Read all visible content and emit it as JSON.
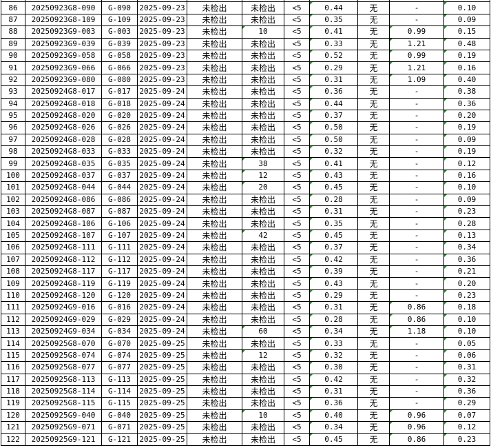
{
  "table": {
    "columns_note": "",
    "rows": [
      [
        "86",
        "20250923G8-090",
        "G-090",
        "2025-09-23",
        "未检出",
        "未检出",
        "<5",
        "0.44",
        "无",
        "-",
        "0.10"
      ],
      [
        "87",
        "20250923G8-109",
        "G-109",
        "2025-09-23",
        "未检出",
        "未检出",
        "<5",
        "0.35",
        "无",
        "-",
        "0.09"
      ],
      [
        "88",
        "20250923G9-003",
        "G-003",
        "2025-09-23",
        "未检出",
        "10",
        "<5",
        "0.41",
        "无",
        "0.99",
        "0.15"
      ],
      [
        "89",
        "20250923G9-039",
        "G-039",
        "2025-09-23",
        "未检出",
        "未检出",
        "<5",
        "0.33",
        "无",
        "1.21",
        "0.48"
      ],
      [
        "90",
        "20250923G9-058",
        "G-058",
        "2025-09-23",
        "未检出",
        "未检出",
        "<5",
        "0.52",
        "无",
        "0.99",
        "0.19"
      ],
      [
        "91",
        "20250923G9-066",
        "G-066",
        "2025-09-23",
        "未检出",
        "未检出",
        "<5",
        "0.29",
        "无",
        "1.21",
        "0.16"
      ],
      [
        "92",
        "20250923G9-080",
        "G-080",
        "2025-09-23",
        "未检出",
        "未检出",
        "<5",
        "0.31",
        "无",
        "1.09",
        "0.40"
      ],
      [
        "93",
        "20250924G8-017",
        "G-017",
        "2025-09-24",
        "未检出",
        "未检出",
        "<5",
        "0.36",
        "无",
        "-",
        "0.38"
      ],
      [
        "94",
        "20250924G8-018",
        "G-018",
        "2025-09-24",
        "未检出",
        "未检出",
        "<5",
        "0.44",
        "无",
        "-",
        "0.36"
      ],
      [
        "95",
        "20250924G8-020",
        "G-020",
        "2025-09-24",
        "未检出",
        "未检出",
        "<5",
        "0.37",
        "无",
        "-",
        "0.20"
      ],
      [
        "96",
        "20250924G8-026",
        "G-026",
        "2025-09-24",
        "未检出",
        "未检出",
        "<5",
        "0.50",
        "无",
        "-",
        "0.19"
      ],
      [
        "97",
        "20250924G8-028",
        "G-028",
        "2025-09-24",
        "未检出",
        "未检出",
        "<5",
        "0.50",
        "无",
        "-",
        "0.09"
      ],
      [
        "98",
        "20250924G8-033",
        "G-033",
        "2025-09-24",
        "未检出",
        "未检出",
        "<5",
        "0.32",
        "无",
        "-",
        "0.19"
      ],
      [
        "99",
        "20250924G8-035",
        "G-035",
        "2025-09-24",
        "未检出",
        "38",
        "<5",
        "0.41",
        "无",
        "-",
        "0.12"
      ],
      [
        "100",
        "20250924G8-037",
        "G-037",
        "2025-09-24",
        "未检出",
        "12",
        "<5",
        "0.43",
        "无",
        "-",
        "0.16"
      ],
      [
        "101",
        "20250924G8-044",
        "G-044",
        "2025-09-24",
        "未检出",
        "20",
        "<5",
        "0.45",
        "无",
        "-",
        "0.10"
      ],
      [
        "102",
        "20250924G8-086",
        "G-086",
        "2025-09-24",
        "未检出",
        "未检出",
        "<5",
        "0.28",
        "无",
        "-",
        "0.09"
      ],
      [
        "103",
        "20250924G8-087",
        "G-087",
        "2025-09-24",
        "未检出",
        "未检出",
        "<5",
        "0.31",
        "无",
        "-",
        "0.23"
      ],
      [
        "104",
        "20250924G8-106",
        "G-106",
        "2025-09-24",
        "未检出",
        "未检出",
        "<5",
        "0.35",
        "无",
        "-",
        "0.28"
      ],
      [
        "105",
        "20250924G8-107",
        "G-107",
        "2025-09-24",
        "未检出",
        "42",
        "<5",
        "0.45",
        "无",
        "-",
        "0.13"
      ],
      [
        "106",
        "20250924G8-111",
        "G-111",
        "2025-09-24",
        "未检出",
        "未检出",
        "<5",
        "0.37",
        "无",
        "-",
        "0.34"
      ],
      [
        "107",
        "20250924G8-112",
        "G-112",
        "2025-09-24",
        "未检出",
        "未检出",
        "<5",
        "0.42",
        "无",
        "-",
        "0.36"
      ],
      [
        "108",
        "20250924G8-117",
        "G-117",
        "2025-09-24",
        "未检出",
        "未检出",
        "<5",
        "0.39",
        "无",
        "-",
        "0.21"
      ],
      [
        "109",
        "20250924G8-119",
        "G-119",
        "2025-09-24",
        "未检出",
        "未检出",
        "<5",
        "0.43",
        "无",
        "-",
        "0.20"
      ],
      [
        "110",
        "20250924G8-120",
        "G-120",
        "2025-09-24",
        "未检出",
        "未检出",
        "<5",
        "0.29",
        "无",
        "-",
        "0.23"
      ],
      [
        "111",
        "20250924G9-016",
        "G-016",
        "2025-09-24",
        "未检出",
        "未检出",
        "<5",
        "0.31",
        "无",
        "0.86",
        "0.18"
      ],
      [
        "112",
        "20250924G9-029",
        "G-029",
        "2025-09-24",
        "未检出",
        "未检出",
        "<5",
        "0.28",
        "无",
        "0.86",
        "0.10"
      ],
      [
        "113",
        "20250924G9-034",
        "G-034",
        "2025-09-24",
        "未检出",
        "60",
        "<5",
        "0.34",
        "无",
        "1.18",
        "0.10"
      ],
      [
        "114",
        "20250925G8-070",
        "G-070",
        "2025-09-25",
        "未检出",
        "未检出",
        "<5",
        "0.33",
        "无",
        "-",
        "0.05"
      ],
      [
        "115",
        "20250925G8-074",
        "G-074",
        "2025-09-25",
        "未检出",
        "12",
        "<5",
        "0.32",
        "无",
        "-",
        "0.06"
      ],
      [
        "116",
        "20250925G8-077",
        "G-077",
        "2025-09-25",
        "未检出",
        "未检出",
        "<5",
        "0.30",
        "无",
        "-",
        "0.31"
      ],
      [
        "117",
        "20250925G8-113",
        "G-113",
        "2025-09-25",
        "未检出",
        "未检出",
        "<5",
        "0.42",
        "无",
        "-",
        "0.32"
      ],
      [
        "118",
        "20250925G8-114",
        "G-114",
        "2025-09-25",
        "未检出",
        "未检出",
        "<5",
        "0.31",
        "无",
        "-",
        "0.36"
      ],
      [
        "119",
        "20250925G8-115",
        "G-115",
        "2025-09-25",
        "未检出",
        "未检出",
        "<5",
        "0.36",
        "无",
        "-",
        "0.29"
      ],
      [
        "120",
        "20250925G9-040",
        "G-040",
        "2025-09-25",
        "未检出",
        "10",
        "<5",
        "0.40",
        "无",
        "0.96",
        "0.07"
      ],
      [
        "121",
        "20250925G9-071",
        "G-071",
        "2025-09-25",
        "未检出",
        "未检出",
        "<5",
        "0.34",
        "无",
        "0.96",
        "0.12"
      ],
      [
        "122",
        "20250925G9-121",
        "G-121",
        "2025-09-25",
        "未检出",
        "未检出",
        "<5",
        "0.45",
        "无",
        "0.86",
        "0.23"
      ]
    ]
  },
  "colors": {
    "grid": "#000000",
    "number_stored_as_text_marker": "#1e8a1e"
  }
}
